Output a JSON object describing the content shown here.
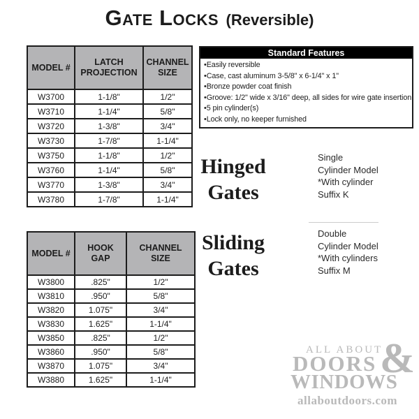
{
  "title": {
    "main": "Gate Locks",
    "qualifier": "(Reversible)"
  },
  "hinged_table": {
    "columns": [
      "MODEL #",
      "LATCH PROJECTION",
      "CHANNEL SIZE"
    ],
    "rows": [
      [
        "W3700",
        "1-1/8\"",
        "1/2\""
      ],
      [
        "W3710",
        "1-1/4\"",
        "5/8\""
      ],
      [
        "W3720",
        "1-3/8\"",
        "3/4\""
      ],
      [
        "W3730",
        "1-7/8\"",
        "1-1/4\""
      ],
      [
        "W3750",
        "1-1/8\"",
        "1/2\""
      ],
      [
        "W3760",
        "1-1/4\"",
        "5/8\""
      ],
      [
        "W3770",
        "1-3/8\"",
        "3/4\""
      ],
      [
        "W3780",
        "1-7/8\"",
        "1-1/4\""
      ]
    ]
  },
  "sliding_table": {
    "columns": [
      "MODEL #",
      "HOOK GAP",
      "CHANNEL SIZE"
    ],
    "rows": [
      [
        "W3800",
        ".825\"",
        "1/2\""
      ],
      [
        "W3810",
        ".950\"",
        "5/8\""
      ],
      [
        "W3820",
        "1.075\"",
        "3/4\""
      ],
      [
        "W3830",
        "1.625\"",
        "1-1/4\""
      ],
      [
        "W3850",
        ".825\"",
        "1/2\""
      ],
      [
        "W3860",
        ".950\"",
        "5/8\""
      ],
      [
        "W3870",
        "1.075\"",
        "3/4\""
      ],
      [
        "W3880",
        "1.625\"",
        "1-1/4\""
      ]
    ]
  },
  "standard_features": {
    "header": "Standard Features",
    "items": [
      "Easily reversible",
      "Case, cast aluminum 3-5/8\" x 6-1/4\" x 1\"",
      "Bronze powder coat finish",
      "Groove: 1/2\" wide x 3/16\" deep, all sides for wire gate insertion",
      "5 pin cylinder(s)",
      "Lock only, no keeper furnished"
    ]
  },
  "labels": {
    "hinged_line1": "Hinged",
    "hinged_line2": "Gates",
    "sliding_line1": "Sliding",
    "sliding_line2": "Gates"
  },
  "notes": {
    "single": [
      "Single",
      "Cylinder Model",
      "*With cylinder",
      "Suffix K"
    ],
    "double": [
      "Double",
      "Cylinder Model",
      "*With cylinders",
      "Suffix M"
    ]
  },
  "logo": {
    "line1": "ALL ABOUT",
    "ampersand": "&",
    "line2": "DOORS",
    "line3": "WINDOWS",
    "website": "allaboutdoors.com"
  },
  "colors": {
    "table_header_bg": "#b4b4b6",
    "table_border": "#1c1c1c",
    "features_header_bg": "#000000",
    "features_header_text": "#ffffff",
    "logo_gray": "#b9b9b9"
  }
}
